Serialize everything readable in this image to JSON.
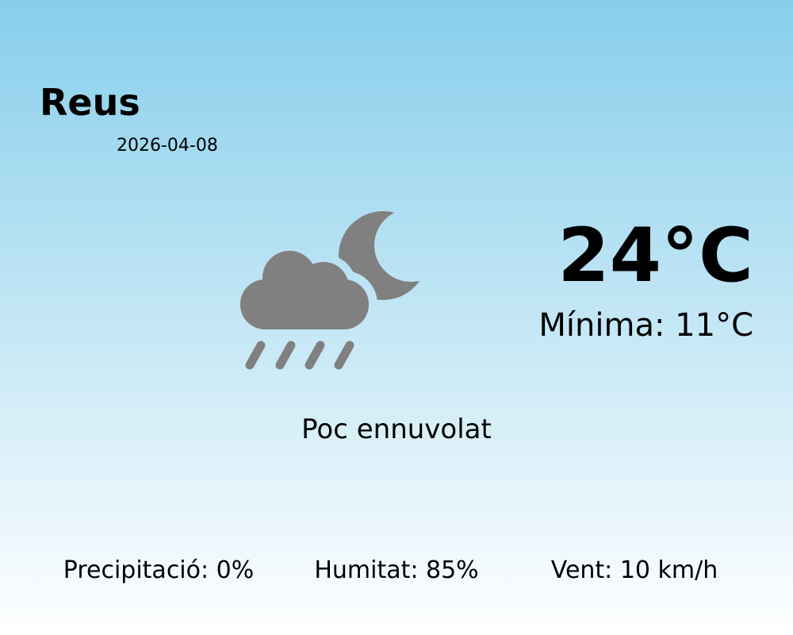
{
  "location": {
    "city": "Reus",
    "date": "2026-04-08"
  },
  "current": {
    "temperature": "24°C",
    "minimum": "Mínima: 11°C",
    "description": "Poc ennuvolat",
    "icon": "cloud-rain-moon-icon"
  },
  "stats": [
    {
      "label": "Precipitació: 0%"
    },
    {
      "label": "Humitat: 85%"
    },
    {
      "label": "Vent: 10 km/h"
    }
  ],
  "colors": {
    "icon": "#808080",
    "background_top": "#87ceeb",
    "background_bottom": "#ffffff"
  }
}
